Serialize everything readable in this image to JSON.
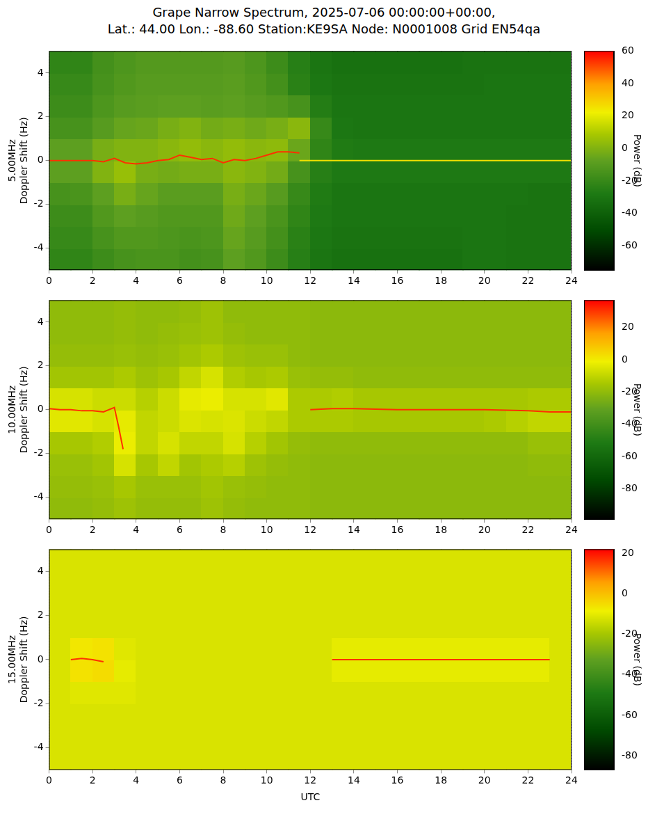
{
  "title": [
    "Grape Narrow Spectrum, 2025-07-06 00:00:00+00:00,",
    "Lat.: 44.00 Lon.: -88.60 Station:KE9SA Node: N0001008 Grid EN54qa"
  ],
  "chart_data": [
    {
      "type": "heatmap",
      "ylabel": [
        "5.00MHz",
        "Doppler Shift (Hz)"
      ],
      "xlim": [
        0,
        24
      ],
      "xticks": [
        0,
        2,
        4,
        6,
        8,
        10,
        12,
        14,
        16,
        18,
        20,
        22,
        24
      ],
      "ylim": [
        -5,
        5
      ],
      "yticks": [
        -4,
        -2,
        0,
        2,
        4
      ],
      "grid": true,
      "cells": {
        "x": [
          0.5,
          1.5,
          2.5,
          3.5,
          4.5,
          5.5,
          6.5,
          7.5,
          8.5,
          9.5,
          10.5,
          11.5,
          12.5,
          13.5,
          14.5,
          15.5,
          16.5,
          17.5,
          18.5,
          19.5,
          20.5,
          21.5,
          22.5,
          23.5
        ],
        "y": [
          -4.5,
          -3.5,
          -2.5,
          -1.5,
          -0.5,
          0.5,
          1.5,
          2.5,
          3.5,
          4.5
        ],
        "z": [
          [
            -22,
            -22,
            -18,
            -15,
            -14,
            -14,
            -16,
            -15,
            -8,
            -12,
            -18,
            -25,
            -30,
            -32,
            -32,
            -32,
            -32,
            -32,
            -32,
            -30,
            -30,
            -31,
            -31,
            -31
          ],
          [
            -20,
            -20,
            -15,
            -12,
            -12,
            -13,
            -14,
            -13,
            -6,
            -10,
            -16,
            -24,
            -29,
            -31,
            -31,
            -31,
            -31,
            -31,
            -31,
            -30,
            -30,
            -31,
            -31,
            -31
          ],
          [
            -18,
            -18,
            -12,
            -8,
            -10,
            -12,
            -12,
            -12,
            -4,
            -8,
            -14,
            -22,
            -28,
            -30,
            -30,
            -30,
            -30,
            -30,
            -30,
            -30,
            -30,
            -31,
            -31,
            -31
          ],
          [
            -15,
            -14,
            -8,
            -2,
            -6,
            -9,
            -9,
            -9,
            -2,
            -5,
            -10,
            -20,
            -27,
            -30,
            -30,
            -30,
            -30,
            -30,
            -30,
            -30,
            -30,
            -30,
            -31,
            -31
          ],
          [
            -8,
            -8,
            0,
            5,
            -2,
            -3,
            -2,
            -2,
            2,
            0,
            -3,
            -15,
            -25,
            -28,
            -28,
            -28,
            -28,
            -28,
            -28,
            -28,
            -28,
            -28,
            -28,
            -28
          ],
          [
            -8,
            -8,
            -2,
            0,
            0,
            2,
            4,
            2,
            4,
            2,
            3,
            -5,
            -22,
            -27,
            -28,
            -28,
            -28,
            -28,
            -28,
            -28,
            -28,
            -28,
            -28,
            -28
          ],
          [
            -15,
            -15,
            -10,
            -6,
            -5,
            -2,
            0,
            -3,
            -2,
            -4,
            -2,
            2,
            -20,
            -29,
            -30,
            -30,
            -30,
            -30,
            -30,
            -30,
            -30,
            -30,
            -30,
            -30
          ],
          [
            -18,
            -18,
            -13,
            -10,
            -9,
            -8,
            -8,
            -9,
            -8,
            -10,
            -12,
            -15,
            -26,
            -30,
            -30,
            -30,
            -30,
            -30,
            -30,
            -30,
            -30,
            -30,
            -30,
            -30
          ],
          [
            -20,
            -20,
            -15,
            -12,
            -10,
            -10,
            -10,
            -10,
            -9,
            -12,
            -16,
            -24,
            -29,
            -31,
            -31,
            -31,
            -31,
            -31,
            -31,
            -31,
            -30,
            -30,
            -30,
            -30
          ],
          [
            -22,
            -22,
            -16,
            -13,
            -11,
            -11,
            -11,
            -11,
            -10,
            -13,
            -18,
            -25,
            -30,
            -32,
            -32,
            -32,
            -32,
            -32,
            -32,
            -31,
            -31,
            -31,
            -31,
            -31
          ]
        ]
      },
      "colorbar": {
        "label": "Power (dB)",
        "lim": [
          -75,
          60
        ],
        "ticks": [
          -60,
          -40,
          -20,
          0,
          20,
          40,
          60
        ]
      },
      "series": [
        {
          "color": "#ff3000",
          "x": [
            0,
            0.5,
            1,
            1.5,
            2,
            2.5,
            3,
            3.5,
            4,
            4.5,
            5,
            5.5,
            6,
            6.5,
            7,
            7.5,
            8,
            8.5,
            9,
            9.5,
            10,
            10.5,
            11,
            11.5
          ],
          "y": [
            0,
            0,
            0,
            0,
            0,
            -0.05,
            0.1,
            -0.1,
            -0.15,
            -0.1,
            0,
            0.05,
            0.25,
            0.15,
            0.05,
            0.1,
            -0.1,
            0.05,
            0,
            0.1,
            0.25,
            0.4,
            0.4,
            0.35
          ]
        },
        {
          "color": "#f0e000",
          "x": [
            11.5,
            24
          ],
          "y": [
            0,
            0
          ]
        }
      ]
    },
    {
      "type": "heatmap",
      "ylabel": [
        "10.00MHz",
        "Doppler Shift (Hz)"
      ],
      "xlim": [
        0,
        24
      ],
      "xticks": [
        0,
        2,
        4,
        6,
        8,
        10,
        12,
        14,
        16,
        18,
        20,
        22,
        24
      ],
      "ylim": [
        -5,
        5
      ],
      "yticks": [
        -4,
        -2,
        0,
        2,
        4
      ],
      "grid": true,
      "cells": {
        "x": [
          0.5,
          1.5,
          2.5,
          3.5,
          4.5,
          5.5,
          6.5,
          7.5,
          8.5,
          9.5,
          10.5,
          11.5,
          12.5,
          13.5,
          14.5,
          15.5,
          16.5,
          17.5,
          18.5,
          19.5,
          20.5,
          21.5,
          22.5,
          23.5
        ],
        "y": [
          -4.5,
          -3.5,
          -2.5,
          -1.5,
          -0.5,
          0.5,
          1.5,
          2.5,
          3.5,
          4.5
        ],
        "z": [
          [
            -20,
            -20,
            -19,
            -17,
            -19,
            -19,
            -19,
            -17,
            -19,
            -20,
            -20,
            -20,
            -21,
            -21,
            -21,
            -21,
            -21,
            -21,
            -21,
            -21,
            -21,
            -21,
            -21,
            -21
          ],
          [
            -19,
            -19,
            -18,
            -15,
            -18,
            -18,
            -18,
            -16,
            -18,
            -19,
            -20,
            -20,
            -21,
            -21,
            -21,
            -21,
            -21,
            -21,
            -21,
            -21,
            -21,
            -21,
            -21,
            -21
          ],
          [
            -18,
            -18,
            -16,
            -6,
            -15,
            -10,
            -16,
            -14,
            -12,
            -17,
            -19,
            -20,
            -21,
            -21,
            -21,
            -21,
            -21,
            -21,
            -21,
            -21,
            -21,
            -21,
            -20,
            -20
          ],
          [
            -15,
            -15,
            -13,
            -2,
            -10,
            -6,
            -10,
            -10,
            -6,
            -12,
            -16,
            -19,
            -20,
            -20,
            -20,
            -20,
            -20,
            -20,
            -20,
            -20,
            -20,
            -20,
            -18,
            -18
          ],
          [
            -4,
            -4,
            -6,
            -3,
            -10,
            -8,
            -5,
            -6,
            -5,
            -8,
            -10,
            -14,
            -14,
            -14,
            -15,
            -15,
            -15,
            -15,
            -15,
            -15,
            -14,
            -12,
            -10,
            -10
          ],
          [
            -6,
            -6,
            -8,
            -8,
            -12,
            -8,
            -3,
            -2,
            -6,
            -6,
            -4,
            -14,
            -14,
            -13,
            -15,
            -15,
            -15,
            -15,
            -15,
            -15,
            -15,
            -15,
            -14,
            -14
          ],
          [
            -16,
            -16,
            -16,
            -14,
            -17,
            -15,
            -10,
            -6,
            -13,
            -15,
            -14,
            -18,
            -19,
            -19,
            -20,
            -20,
            -20,
            -20,
            -20,
            -20,
            -20,
            -20,
            -20,
            -20
          ],
          [
            -19,
            -19,
            -19,
            -18,
            -19,
            -18,
            -16,
            -14,
            -17,
            -18,
            -18,
            -20,
            -21,
            -21,
            -21,
            -21,
            -21,
            -21,
            -21,
            -21,
            -21,
            -21,
            -21,
            -21
          ],
          [
            -20,
            -20,
            -20,
            -19,
            -20,
            -19,
            -18,
            -17,
            -19,
            -20,
            -20,
            -20,
            -21,
            -21,
            -21,
            -21,
            -21,
            -21,
            -21,
            -21,
            -21,
            -21,
            -21,
            -21
          ],
          [
            -20,
            -20,
            -20,
            -19,
            -20,
            -20,
            -19,
            -17,
            -20,
            -20,
            -20,
            -20,
            -21,
            -21,
            -21,
            -21,
            -21,
            -21,
            -21,
            -21,
            -21,
            -21,
            -21,
            -21
          ]
        ]
      },
      "colorbar": {
        "label": "Power (dB)",
        "lim": [
          -99,
          37
        ],
        "ticks": [
          -80,
          -60,
          -40,
          -20,
          0,
          20
        ]
      },
      "series": [
        {
          "color": "#ff3000",
          "x": [
            0,
            0.5,
            1,
            1.5,
            2,
            2.5,
            3,
            3.2,
            3.4
          ],
          "y": [
            0.05,
            0,
            0,
            -0.05,
            -0.05,
            -0.1,
            0.1,
            -0.8,
            -1.8
          ]
        },
        {
          "color": "#ff3000",
          "x": [
            12,
            13,
            14,
            16,
            18,
            20,
            22,
            23,
            24
          ],
          "y": [
            0,
            0.05,
            0.05,
            0,
            0,
            0,
            -0.05,
            -0.1,
            -0.1
          ]
        }
      ]
    },
    {
      "type": "heatmap",
      "ylabel": [
        "15.00MHz",
        "Doppler Shift (Hz)"
      ],
      "xlabel": "UTC",
      "xlim": [
        0,
        24
      ],
      "xticks": [
        0,
        2,
        4,
        6,
        8,
        10,
        12,
        14,
        16,
        18,
        20,
        22,
        24
      ],
      "ylim": [
        -5,
        5
      ],
      "yticks": [
        -4,
        -2,
        0,
        2,
        4
      ],
      "grid": true,
      "cells": {
        "x": [
          0.5,
          1.5,
          2.5,
          3.5,
          4.5,
          5.5,
          6.5,
          7.5,
          8.5,
          9.5,
          10.5,
          11.5,
          12.5,
          13.5,
          14.5,
          15.5,
          16.5,
          17.5,
          18.5,
          19.5,
          20.5,
          21.5,
          22.5,
          23.5
        ],
        "y": [
          -4.5,
          -3.5,
          -2.5,
          -1.5,
          -0.5,
          0.5,
          1.5,
          2.5,
          3.5,
          4.5
        ],
        "z": [
          [
            -12,
            -12,
            -12,
            -12,
            -12,
            -12,
            -12,
            -12,
            -12,
            -12,
            -12,
            -12,
            -12,
            -12,
            -12,
            -12,
            -12,
            -12,
            -12,
            -12,
            -12,
            -12,
            -12,
            -12
          ],
          [
            -12,
            -12,
            -12,
            -12,
            -12,
            -12,
            -12,
            -12,
            -12,
            -12,
            -12,
            -12,
            -12,
            -12,
            -12,
            -12,
            -12,
            -12,
            -12,
            -12,
            -12,
            -12,
            -12,
            -12
          ],
          [
            -12,
            -12,
            -12,
            -12,
            -12,
            -12,
            -12,
            -12,
            -12,
            -12,
            -12,
            -12,
            -12,
            -12,
            -12,
            -12,
            -12,
            -12,
            -12,
            -12,
            -12,
            -12,
            -12,
            -12
          ],
          [
            -12,
            -11,
            -11,
            -11,
            -12,
            -12,
            -12,
            -12,
            -12,
            -12,
            -12,
            -12,
            -12,
            -12,
            -12,
            -12,
            -12,
            -12,
            -12,
            -12,
            -12,
            -12,
            -12,
            -12
          ],
          [
            -12,
            -6,
            -5,
            -10,
            -12,
            -12,
            -12,
            -12,
            -12,
            -12,
            -12,
            -12,
            -12,
            -10,
            -10,
            -10,
            -10,
            -10,
            -10,
            -10,
            -10,
            -10,
            -10,
            -12
          ],
          [
            -12,
            -7,
            -6,
            -11,
            -12,
            -12,
            -12,
            -12,
            -12,
            -12,
            -12,
            -12,
            -12,
            -10,
            -10,
            -10,
            -10,
            -10,
            -10,
            -10,
            -10,
            -10,
            -10,
            -12
          ],
          [
            -12,
            -12,
            -12,
            -12,
            -12,
            -12,
            -12,
            -12,
            -12,
            -12,
            -12,
            -12,
            -12,
            -12,
            -12,
            -12,
            -12,
            -12,
            -12,
            -12,
            -12,
            -12,
            -12,
            -12
          ],
          [
            -12,
            -12,
            -12,
            -12,
            -12,
            -12,
            -12,
            -12,
            -12,
            -12,
            -12,
            -12,
            -12,
            -12,
            -12,
            -12,
            -12,
            -12,
            -12,
            -12,
            -12,
            -12,
            -12,
            -12
          ],
          [
            -12,
            -12,
            -12,
            -12,
            -12,
            -12,
            -12,
            -12,
            -12,
            -12,
            -12,
            -12,
            -12,
            -12,
            -12,
            -12,
            -12,
            -12,
            -12,
            -12,
            -12,
            -12,
            -12,
            -12
          ],
          [
            -12,
            -12,
            -12,
            -12,
            -12,
            -12,
            -12,
            -12,
            -12,
            -12,
            -12,
            -12,
            -12,
            -12,
            -12,
            -12,
            -12,
            -12,
            -12,
            -12,
            -12,
            -12,
            -12,
            -12
          ]
        ]
      },
      "colorbar": {
        "label": "Power (dB)",
        "lim": [
          -87,
          22
        ],
        "ticks": [
          -80,
          -60,
          -40,
          -20,
          0,
          20
        ]
      },
      "series": [
        {
          "color": "#ff3000",
          "x": [
            1,
            1.5,
            2,
            2.5
          ],
          "y": [
            0,
            0.05,
            0,
            -0.1
          ]
        },
        {
          "color": "#ff3000",
          "x": [
            13,
            23
          ],
          "y": [
            0,
            0
          ]
        }
      ]
    }
  ]
}
